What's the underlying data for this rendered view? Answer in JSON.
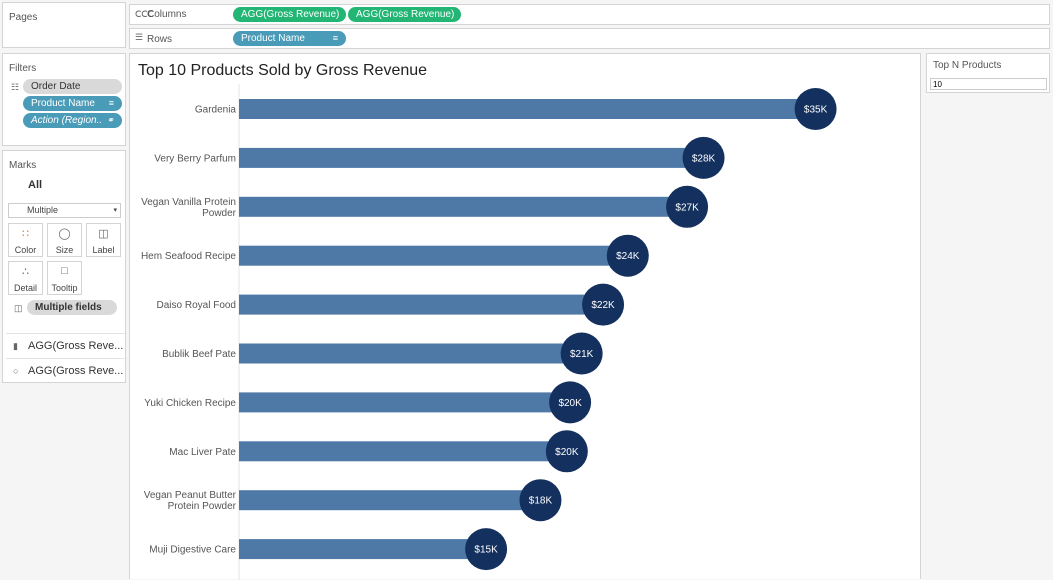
{
  "pages": {
    "title": "Pages"
  },
  "shelves": {
    "columns_label": "Columns",
    "columns_pills": [
      "AGG(Gross Revenue)",
      "AGG(Gross Revenue)"
    ],
    "rows_label": "Rows",
    "rows_pill": "Product Name"
  },
  "filters": {
    "title": "Filters",
    "items": [
      "Order Date",
      "Product Name",
      "Action (Region.."
    ]
  },
  "marks": {
    "title": "Marks",
    "all_label": "All",
    "mark_type": "Multiple",
    "buttons": [
      "Color",
      "Size",
      "Label",
      "Detail",
      "Tooltip"
    ],
    "field_pill": "Multiple fields",
    "cards": [
      "AGG(Gross Reve...",
      "AGG(Gross Reve..."
    ]
  },
  "param": {
    "title": "Top N Products",
    "value": "10"
  },
  "icons": {
    "columns": "columns-icon",
    "rows": "rows-icon",
    "filter": "filter-icon",
    "sort": "sort-icon",
    "color": "color-icon",
    "size": "size-icon",
    "label": "label-icon",
    "detail": "detail-icon",
    "tooltip": "tooltip-icon",
    "bar": "bar-chart-icon",
    "circle": "circle-icon",
    "dropdown": "chevron-down-icon"
  },
  "colors": {
    "bar": "#4e79a7",
    "circle": "#13305e",
    "pill_green": "#22b574",
    "pill_blue": "#4a9bb8"
  },
  "chart_data": {
    "type": "bar",
    "title": "Top 10 Products Sold by Gross Revenue",
    "orientation": "horizontal",
    "categories": [
      "Gardenia",
      "Very Berry Parfum",
      "Vegan Vanilla Protein Powder",
      "Hem Seafood Recipe",
      "Daiso Royal Food",
      "Bublik Beef Pate",
      "Yuki Chicken Recipe",
      "Mac Liver Pate",
      "Vegan Peanut Butter Protein Powder",
      "Muji Digestive Care"
    ],
    "category_lines": [
      [
        "Gardenia"
      ],
      [
        "Very Berry Parfum"
      ],
      [
        "Vegan Vanilla Protein",
        "Powder"
      ],
      [
        "Hem Seafood Recipe"
      ],
      [
        "Daiso Royal Food"
      ],
      [
        "Bublik Beef Pate"
      ],
      [
        "Yuki Chicken Recipe"
      ],
      [
        "Mac Liver Pate"
      ],
      [
        "Vegan Peanut Butter",
        "Protein Powder"
      ],
      [
        "Muji Digestive Care"
      ]
    ],
    "values": [
      35.0,
      28.2,
      27.2,
      23.6,
      22.1,
      20.8,
      20.1,
      19.9,
      18.3,
      15.0
    ],
    "labels": [
      "$35K",
      "$28K",
      "$27K",
      "$24K",
      "$22K",
      "$21K",
      "$20K",
      "$20K",
      "$18K",
      "$15K"
    ],
    "units": "K USD",
    "xlim": [
      0,
      38
    ],
    "grid": false,
    "legend": "none"
  }
}
